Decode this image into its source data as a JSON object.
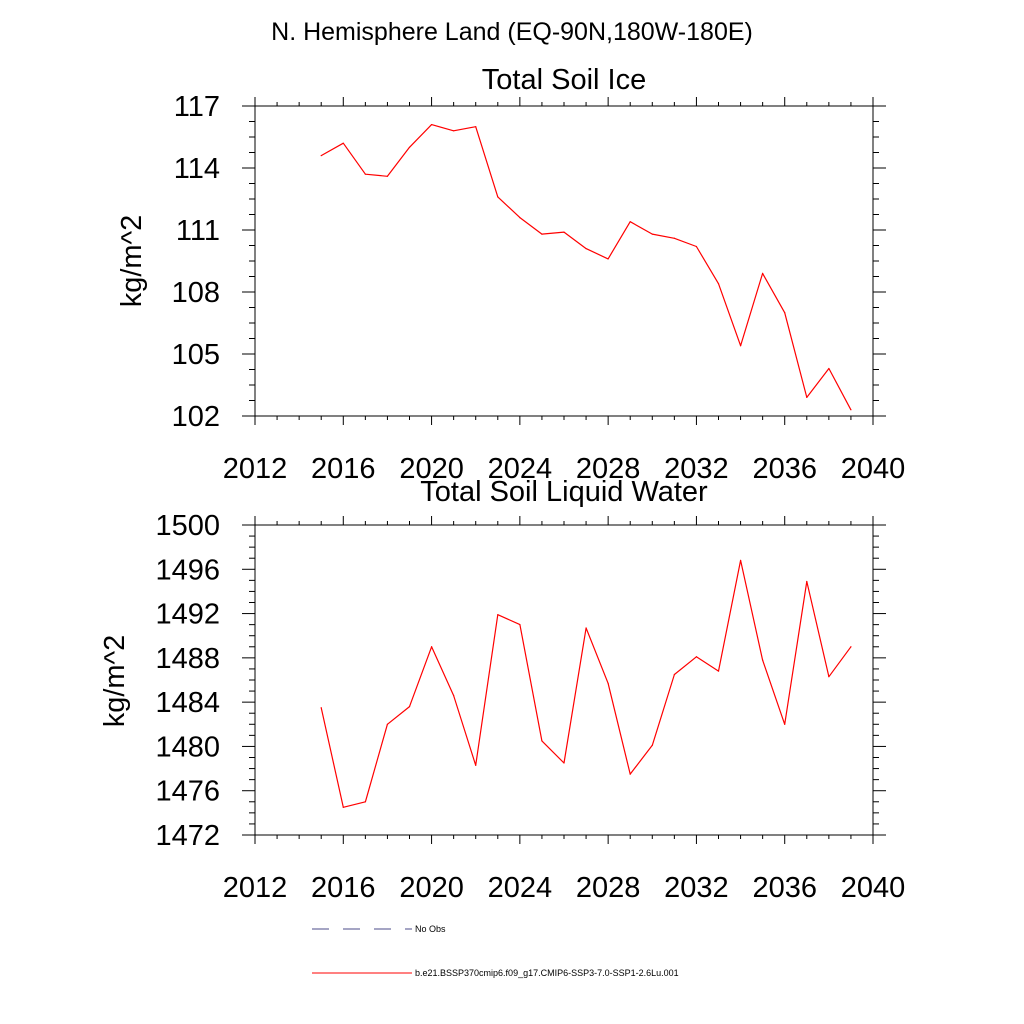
{
  "figure": {
    "suptitle": "N. Hemisphere Land (EQ-90N,180W-180E)"
  },
  "chart_data": [
    {
      "type": "line",
      "title": "Total Soil Ice",
      "xlabel": "",
      "ylabel": "kg/m^2",
      "xlim": [
        2012,
        2040
      ],
      "ylim": [
        102,
        117
      ],
      "x_ticks": [
        "2012",
        "2016",
        "2020",
        "2024",
        "2028",
        "2032",
        "2036",
        "2040"
      ],
      "y_ticks": [
        "102",
        "105",
        "108",
        "111",
        "114",
        "117"
      ],
      "grid": false,
      "x": [
        2015,
        2016,
        2017,
        2018,
        2019,
        2020,
        2021,
        2022,
        2023,
        2024,
        2025,
        2026,
        2027,
        2028,
        2029,
        2030,
        2031,
        2032,
        2033,
        2034,
        2035,
        2036,
        2037,
        2038,
        2039
      ],
      "series": [
        {
          "name": "b.e21.BSSP370cmip6.f09_g17.CMIP6-SSP3-7.0-SSP1-2.6Lu.001",
          "color": "#ff0000",
          "values": [
            114.6,
            115.2,
            113.7,
            113.6,
            115.0,
            116.1,
            115.8,
            116.0,
            112.6,
            111.6,
            110.8,
            110.9,
            110.1,
            109.6,
            111.4,
            110.8,
            110.6,
            110.2,
            108.4,
            105.4,
            108.9,
            107.0,
            102.9,
            104.3,
            102.3
          ]
        }
      ]
    },
    {
      "type": "line",
      "title": "Total Soil Liquid Water",
      "xlabel": "",
      "ylabel": "kg/m^2",
      "xlim": [
        2012,
        2040
      ],
      "ylim": [
        1472,
        1500
      ],
      "x_ticks": [
        "2012",
        "2016",
        "2020",
        "2024",
        "2028",
        "2032",
        "2036",
        "2040"
      ],
      "y_ticks": [
        "1472",
        "1476",
        "1480",
        "1484",
        "1488",
        "1492",
        "1496",
        "1500"
      ],
      "grid": false,
      "x": [
        2015,
        2016,
        2017,
        2018,
        2019,
        2020,
        2021,
        2022,
        2023,
        2024,
        2025,
        2026,
        2027,
        2028,
        2029,
        2030,
        2031,
        2032,
        2033,
        2034,
        2035,
        2036,
        2037,
        2038,
        2039
      ],
      "series": [
        {
          "name": "b.e21.BSSP370cmip6.f09_g17.CMIP6-SSP3-7.0-SSP1-2.6Lu.001",
          "color": "#ff0000",
          "values": [
            1483.5,
            1474.5,
            1475.0,
            1482.0,
            1483.6,
            1489.0,
            1484.6,
            1478.3,
            1491.9,
            1491.0,
            1480.5,
            1478.5,
            1490.7,
            1485.7,
            1477.5,
            1480.1,
            1486.5,
            1488.1,
            1486.8,
            1496.8,
            1487.8,
            1482.0,
            1494.9,
            1486.3,
            1489.0
          ]
        }
      ]
    }
  ],
  "legend": {
    "placement": "bottom",
    "entries": [
      {
        "label": "No Obs",
        "color": "#4b4b8a",
        "style": "dashed"
      },
      {
        "label": "b.e21.BSSP370cmip6.f09_g17.CMIP6-SSP3-7.0-SSP1-2.6Lu.001",
        "color": "#ff0000",
        "style": "solid"
      }
    ]
  }
}
